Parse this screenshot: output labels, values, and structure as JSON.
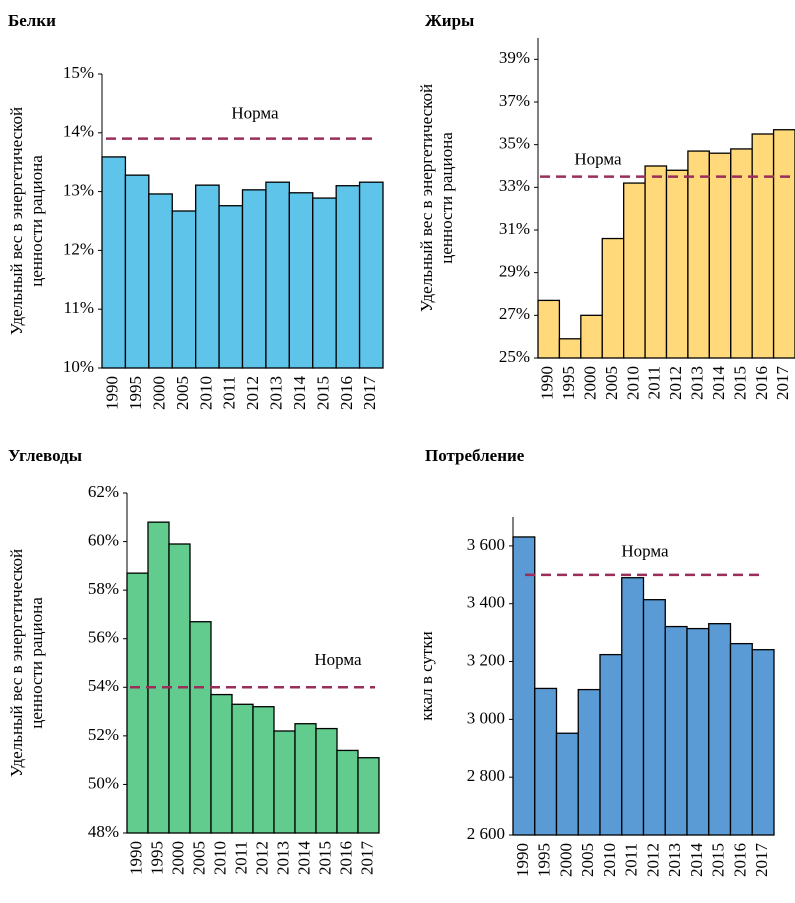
{
  "chart_data": [
    {
      "type": "bar",
      "title": "Белки",
      "ylabel": [
        "Удельный вес в энергетической",
        "ценности рациона"
      ],
      "categories": [
        "1990",
        "1995",
        "2000",
        "2005",
        "2010",
        "2011",
        "2012",
        "2013",
        "2014",
        "2015",
        "2016",
        "2017"
      ],
      "values": [
        13.59,
        13.28,
        12.96,
        12.67,
        13.11,
        12.76,
        13.03,
        13.16,
        12.98,
        12.89,
        13.1,
        13.16
      ],
      "color": "#5ec4ea",
      "ylim": [
        10,
        15
      ],
      "yticks": [
        {
          "value": 10,
          "label": "10%"
        },
        {
          "value": 11,
          "label": "11%"
        },
        {
          "value": 12,
          "label": "12%"
        },
        {
          "value": 13,
          "label": "13%"
        },
        {
          "value": 14,
          "label": "14%"
        },
        {
          "value": 15,
          "label": "15%"
        }
      ],
      "norm": {
        "value": 13.9,
        "label": "Норма",
        "color": "#9b2d5a"
      }
    },
    {
      "type": "bar",
      "title": "Жиры",
      "ylabel": [
        "Удельный вес в энергетической",
        "ценности рациона"
      ],
      "categories": [
        "1990",
        "1995",
        "2000",
        "2005",
        "2010",
        "2011",
        "2012",
        "2013",
        "2014",
        "2015",
        "2016",
        "2017"
      ],
      "values": [
        27.7,
        25.9,
        27.0,
        30.6,
        33.2,
        34.0,
        33.8,
        34.7,
        34.6,
        34.8,
        35.5,
        35.7
      ],
      "color": "#ffd97a",
      "ylim": [
        25,
        40
      ],
      "yticks": [
        {
          "value": 25,
          "label": "25%"
        },
        {
          "value": 27,
          "label": "27%"
        },
        {
          "value": 29,
          "label": "29%"
        },
        {
          "value": 31,
          "label": "31%"
        },
        {
          "value": 33,
          "label": "33%"
        },
        {
          "value": 35,
          "label": "35%"
        },
        {
          "value": 37,
          "label": "37%"
        },
        {
          "value": 39,
          "label": "39%"
        }
      ],
      "norm": {
        "value": 33.5,
        "label": "Норма",
        "color": "#9b2d5a"
      }
    },
    {
      "type": "bar",
      "title": "Углеводы",
      "ylabel": [
        "Удельный вес в энергетической",
        "ценности рациона"
      ],
      "categories": [
        "1990",
        "1995",
        "2000",
        "2005",
        "2010",
        "2011",
        "2012",
        "2013",
        "2014",
        "2015",
        "2016",
        "2017"
      ],
      "values": [
        58.7,
        60.8,
        59.9,
        56.7,
        53.7,
        53.3,
        53.2,
        52.2,
        52.5,
        52.3,
        51.4,
        51.1
      ],
      "color": "#62cc8e",
      "ylim": [
        48,
        62
      ],
      "yticks": [
        {
          "value": 48,
          "label": "48%"
        },
        {
          "value": 50,
          "label": "50%"
        },
        {
          "value": 52,
          "label": "52%"
        },
        {
          "value": 54,
          "label": "54%"
        },
        {
          "value": 56,
          "label": "56%"
        },
        {
          "value": 58,
          "label": "58%"
        },
        {
          "value": 60,
          "label": "60%"
        },
        {
          "value": 62,
          "label": "62%"
        }
      ],
      "norm": {
        "value": 54,
        "label": "Норма",
        "color": "#9b2d5a"
      }
    },
    {
      "type": "bar",
      "title": "Потребление",
      "ylabel": [
        "ккал в сутки"
      ],
      "categories": [
        "1990",
        "1995",
        "2000",
        "2005",
        "2010",
        "2011",
        "2012",
        "2013",
        "2014",
        "2015",
        "2016",
        "2017"
      ],
      "values": [
        3631,
        3107,
        2952,
        3103,
        3224,
        3490,
        3414,
        3321,
        3314,
        3331,
        3262,
        3241
      ],
      "color": "#5b9bd5",
      "ylim": [
        2600,
        3700
      ],
      "yticks": [
        {
          "value": 2600,
          "label": "2 600"
        },
        {
          "value": 2800,
          "label": "2 800"
        },
        {
          "value": 3000,
          "label": "3 000"
        },
        {
          "value": 3200,
          "label": "3 200"
        },
        {
          "value": 3400,
          "label": "3 400"
        },
        {
          "value": 3600,
          "label": "3 600"
        }
      ],
      "norm": {
        "value": 3500,
        "label": "Норма",
        "color": "#9b2d5a"
      }
    }
  ]
}
